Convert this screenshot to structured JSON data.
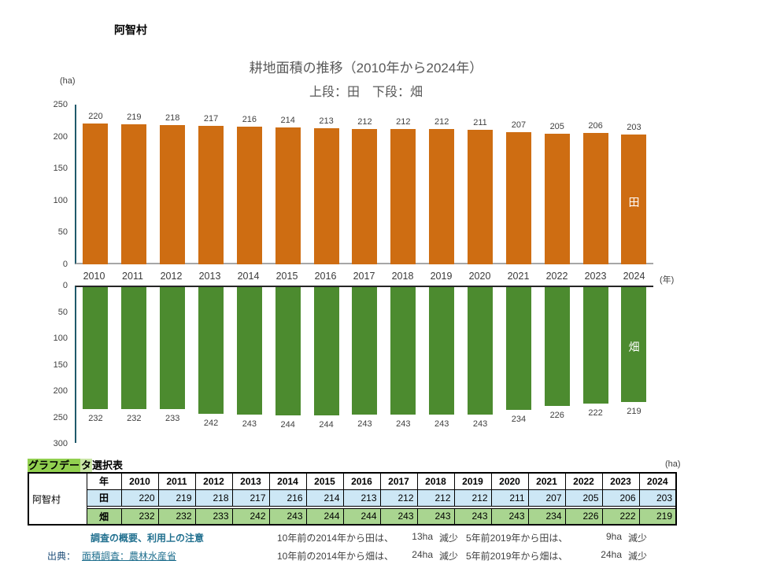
{
  "header": {
    "municipality": "阿智村"
  },
  "chart_data": {
    "type": "bar",
    "title": "耕地面積の推移（2010年から2024年）",
    "subtitle": "上段：田　下段：畑",
    "y_unit": "(ha)",
    "x_unit": "(年)",
    "grid": false,
    "value_labels": true,
    "legend_position": "inside-last-bar",
    "categories": [
      "2010",
      "2011",
      "2012",
      "2013",
      "2014",
      "2015",
      "2016",
      "2017",
      "2018",
      "2019",
      "2020",
      "2021",
      "2022",
      "2023",
      "2024"
    ],
    "series": [
      {
        "id": "paddy",
        "name": "田",
        "color": "#ce6d12",
        "direction": "up",
        "axis_max": 250,
        "ticks": [
          250,
          200,
          150,
          100,
          50,
          0
        ],
        "values": [
          220,
          219,
          218,
          217,
          216,
          214,
          213,
          212,
          212,
          212,
          211,
          207,
          205,
          206,
          203
        ]
      },
      {
        "id": "field",
        "name": "畑",
        "color": "#4c8b2f",
        "direction": "down",
        "axis_max": 300,
        "ticks": [
          0,
          50,
          100,
          150,
          200,
          250,
          300
        ],
        "values": [
          232,
          232,
          233,
          242,
          243,
          244,
          244,
          243,
          243,
          243,
          243,
          234,
          226,
          222,
          219
        ]
      }
    ]
  },
  "table": {
    "label_highlight": "グラフデー",
    "label_highlight2": "タ",
    "label_rest": "選択表",
    "unit": "(ha)",
    "row_header": "阿智村",
    "year_header": "年",
    "years": [
      "2010",
      "2011",
      "2012",
      "2013",
      "2014",
      "2015",
      "2016",
      "2017",
      "2018",
      "2019",
      "2020",
      "2021",
      "2022",
      "2023",
      "2024"
    ],
    "rows": [
      {
        "label": "田",
        "bg": "#cde7f5",
        "values": [
          220,
          219,
          218,
          217,
          216,
          214,
          213,
          212,
          212,
          212,
          211,
          207,
          205,
          206,
          203
        ]
      },
      {
        "label": "畑",
        "bg": "#a9d590",
        "values": [
          232,
          232,
          233,
          242,
          243,
          244,
          244,
          243,
          243,
          243,
          243,
          234,
          226,
          222,
          219
        ]
      }
    ]
  },
  "footer": {
    "survey_link": "調査の概要、利用上の注意",
    "source_label": "出典：",
    "source_link": "面積調査：農林水産省",
    "notes": [
      {
        "label": "10年前の2014年から田は、",
        "amount": "13ha",
        "suffix": "減少"
      },
      {
        "label": "5年前2019年から田は、",
        "amount": "9ha",
        "suffix": "減少"
      },
      {
        "label": "10年前の2014年から畑は、",
        "amount": "24ha",
        "suffix": "減少"
      },
      {
        "label": "5年前2019年から畑は、",
        "amount": "24ha",
        "suffix": "減少"
      }
    ]
  }
}
